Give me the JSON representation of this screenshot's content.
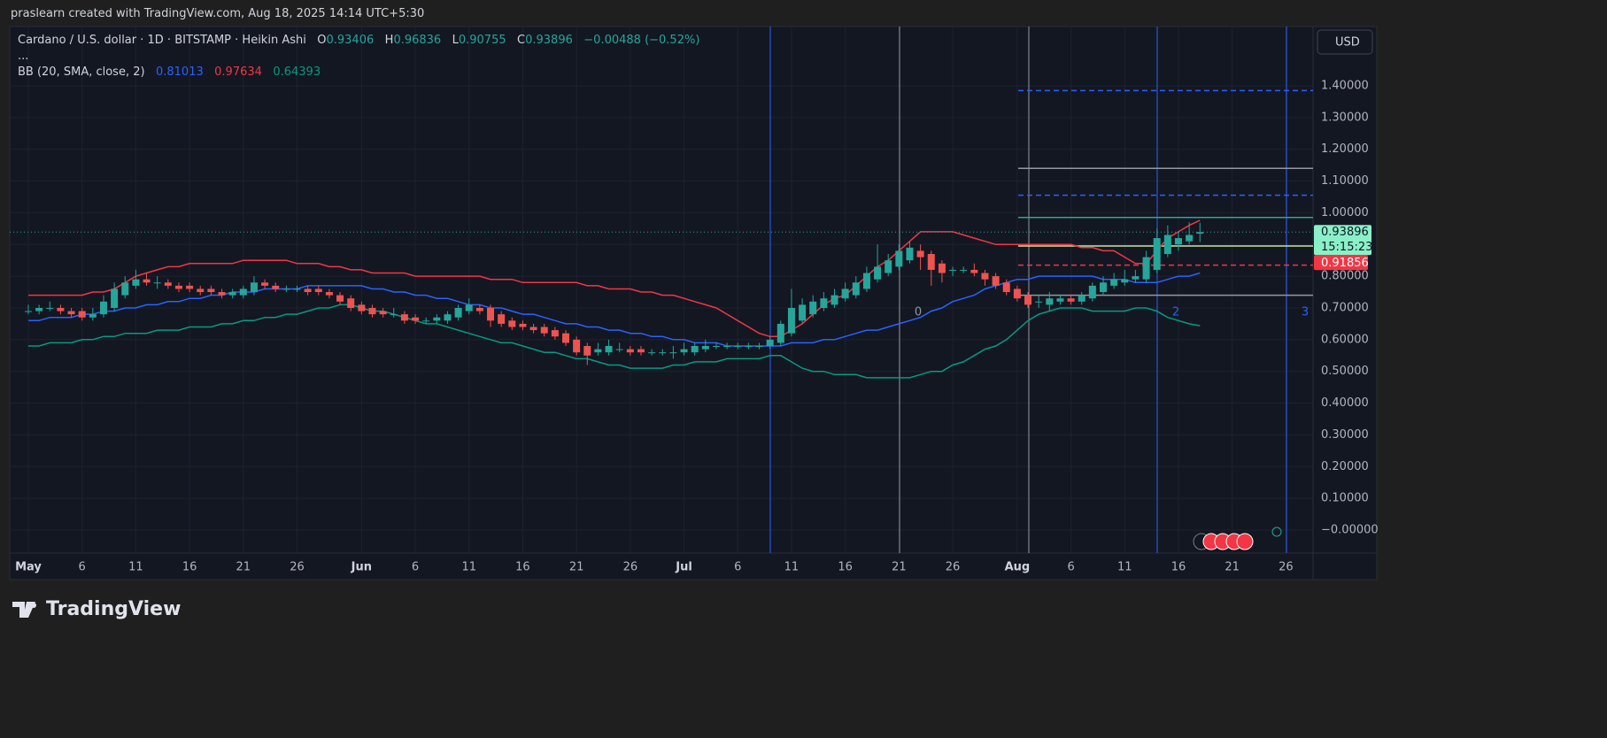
{
  "header": {
    "attribution": "praslearn created with TradingView.com, Aug 18, 2025 14:14 UTC+5:30"
  },
  "chart_data": {
    "type": "candlestick",
    "symbol": "Cardano / U.S. dollar · 1D · BITSTAMP · Heikin Ashi",
    "ohlc_letters": [
      "O",
      "H",
      "L",
      "C"
    ],
    "change_label": "−0.00488 (−0.52%)",
    "more": "...",
    "indicator": "BB (20, SMA, close, 2)",
    "currency": "USD",
    "countdown": "15:15:23",
    "alert_price": 0.91856,
    "drawing_labels": [
      "0",
      "2",
      "3"
    ],
    "up_color": "#26a69a",
    "down_color": "#ef5350",
    "grid": true,
    "categories": [
      "May",
      null,
      null,
      null,
      null,
      "6",
      null,
      null,
      null,
      null,
      "11",
      null,
      null,
      null,
      null,
      "16",
      null,
      null,
      null,
      null,
      "21",
      null,
      null,
      null,
      null,
      "26",
      null,
      null,
      null,
      null,
      null,
      "Jun",
      null,
      null,
      null,
      null,
      "6",
      null,
      null,
      null,
      null,
      "11",
      null,
      null,
      null,
      null,
      "16",
      null,
      null,
      null,
      null,
      "21",
      null,
      null,
      null,
      null,
      "26",
      null,
      null,
      null,
      null,
      "Jul",
      null,
      null,
      null,
      null,
      "6",
      null,
      null,
      null,
      null,
      "11",
      null,
      null,
      null,
      null,
      "16",
      null,
      null,
      null,
      null,
      "21",
      null,
      null,
      null,
      null,
      "26",
      null,
      null,
      null,
      null,
      null,
      "Aug",
      null,
      null,
      null,
      null,
      "6",
      null,
      null,
      null,
      null,
      "11",
      null,
      null,
      null,
      null,
      "16",
      null,
      null,
      null,
      null,
      "21",
      null,
      null,
      null,
      null,
      "26",
      null,
      null
    ],
    "candles": [
      [
        0.69,
        0.71,
        0.68,
        0.69
      ],
      [
        0.69,
        0.71,
        0.68,
        0.7
      ],
      [
        0.7,
        0.72,
        0.69,
        0.7
      ],
      [
        0.7,
        0.71,
        0.68,
        0.69
      ],
      [
        0.69,
        0.7,
        0.67,
        0.68
      ],
      [
        0.69,
        0.7,
        0.66,
        0.67
      ],
      [
        0.67,
        0.7,
        0.66,
        0.68
      ],
      [
        0.68,
        0.74,
        0.67,
        0.72
      ],
      [
        0.7,
        0.78,
        0.69,
        0.76
      ],
      [
        0.74,
        0.8,
        0.73,
        0.78
      ],
      [
        0.77,
        0.82,
        0.76,
        0.79
      ],
      [
        0.79,
        0.81,
        0.77,
        0.78
      ],
      [
        0.78,
        0.8,
        0.76,
        0.78
      ],
      [
        0.78,
        0.79,
        0.76,
        0.77
      ],
      [
        0.77,
        0.78,
        0.75,
        0.76
      ],
      [
        0.77,
        0.78,
        0.75,
        0.76
      ],
      [
        0.76,
        0.77,
        0.74,
        0.75
      ],
      [
        0.76,
        0.77,
        0.74,
        0.75
      ],
      [
        0.75,
        0.76,
        0.73,
        0.74
      ],
      [
        0.74,
        0.76,
        0.73,
        0.75
      ],
      [
        0.74,
        0.77,
        0.73,
        0.76
      ],
      [
        0.75,
        0.8,
        0.74,
        0.78
      ],
      [
        0.78,
        0.79,
        0.76,
        0.77
      ],
      [
        0.77,
        0.78,
        0.75,
        0.76
      ],
      [
        0.76,
        0.77,
        0.75,
        0.76
      ],
      [
        0.76,
        0.77,
        0.75,
        0.76
      ],
      [
        0.76,
        0.77,
        0.74,
        0.75
      ],
      [
        0.76,
        0.77,
        0.74,
        0.75
      ],
      [
        0.75,
        0.76,
        0.73,
        0.74
      ],
      [
        0.74,
        0.75,
        0.71,
        0.72
      ],
      [
        0.73,
        0.74,
        0.69,
        0.7
      ],
      [
        0.71,
        0.72,
        0.68,
        0.69
      ],
      [
        0.7,
        0.71,
        0.67,
        0.68
      ],
      [
        0.69,
        0.7,
        0.67,
        0.68
      ],
      [
        0.68,
        0.7,
        0.67,
        0.68
      ],
      [
        0.68,
        0.69,
        0.65,
        0.66
      ],
      [
        0.67,
        0.68,
        0.65,
        0.66
      ],
      [
        0.66,
        0.67,
        0.65,
        0.66
      ],
      [
        0.66,
        0.68,
        0.65,
        0.67
      ],
      [
        0.66,
        0.69,
        0.65,
        0.68
      ],
      [
        0.67,
        0.71,
        0.66,
        0.7
      ],
      [
        0.69,
        0.73,
        0.68,
        0.71
      ],
      [
        0.7,
        0.71,
        0.68,
        0.69
      ],
      [
        0.7,
        0.71,
        0.64,
        0.66
      ],
      [
        0.68,
        0.69,
        0.64,
        0.65
      ],
      [
        0.66,
        0.67,
        0.63,
        0.64
      ],
      [
        0.65,
        0.66,
        0.63,
        0.64
      ],
      [
        0.64,
        0.65,
        0.62,
        0.63
      ],
      [
        0.64,
        0.65,
        0.61,
        0.62
      ],
      [
        0.63,
        0.64,
        0.6,
        0.61
      ],
      [
        0.62,
        0.63,
        0.58,
        0.59
      ],
      [
        0.6,
        0.61,
        0.55,
        0.56
      ],
      [
        0.58,
        0.59,
        0.52,
        0.55
      ],
      [
        0.56,
        0.59,
        0.55,
        0.57
      ],
      [
        0.56,
        0.6,
        0.55,
        0.58
      ],
      [
        0.57,
        0.59,
        0.56,
        0.57
      ],
      [
        0.57,
        0.58,
        0.55,
        0.56
      ],
      [
        0.57,
        0.58,
        0.55,
        0.56
      ],
      [
        0.56,
        0.57,
        0.55,
        0.56
      ],
      [
        0.56,
        0.57,
        0.55,
        0.56
      ],
      [
        0.56,
        0.58,
        0.54,
        0.56
      ],
      [
        0.56,
        0.59,
        0.55,
        0.57
      ],
      [
        0.56,
        0.59,
        0.55,
        0.58
      ],
      [
        0.57,
        0.6,
        0.56,
        0.58
      ],
      [
        0.58,
        0.59,
        0.57,
        0.58
      ],
      [
        0.58,
        0.59,
        0.57,
        0.58
      ],
      [
        0.58,
        0.59,
        0.57,
        0.58
      ],
      [
        0.58,
        0.59,
        0.57,
        0.58
      ],
      [
        0.58,
        0.59,
        0.57,
        0.58
      ],
      [
        0.58,
        0.61,
        0.57,
        0.6
      ],
      [
        0.59,
        0.66,
        0.58,
        0.65
      ],
      [
        0.62,
        0.76,
        0.61,
        0.7
      ],
      [
        0.66,
        0.73,
        0.65,
        0.71
      ],
      [
        0.68,
        0.74,
        0.67,
        0.72
      ],
      [
        0.7,
        0.75,
        0.69,
        0.73
      ],
      [
        0.71,
        0.76,
        0.7,
        0.74
      ],
      [
        0.73,
        0.78,
        0.72,
        0.76
      ],
      [
        0.74,
        0.8,
        0.73,
        0.78
      ],
      [
        0.76,
        0.83,
        0.75,
        0.81
      ],
      [
        0.79,
        0.9,
        0.78,
        0.83
      ],
      [
        0.81,
        0.87,
        0.8,
        0.85
      ],
      [
        0.83,
        0.9,
        0.82,
        0.88
      ],
      [
        0.85,
        0.91,
        0.84,
        0.89
      ],
      [
        0.88,
        0.9,
        0.82,
        0.86
      ],
      [
        0.87,
        0.88,
        0.77,
        0.82
      ],
      [
        0.84,
        0.85,
        0.78,
        0.81
      ],
      [
        0.82,
        0.83,
        0.8,
        0.82
      ],
      [
        0.82,
        0.83,
        0.81,
        0.82
      ],
      [
        0.82,
        0.84,
        0.8,
        0.81
      ],
      [
        0.81,
        0.82,
        0.77,
        0.79
      ],
      [
        0.8,
        0.81,
        0.76,
        0.77
      ],
      [
        0.78,
        0.79,
        0.74,
        0.75
      ],
      [
        0.76,
        0.77,
        0.72,
        0.73
      ],
      [
        0.74,
        0.75,
        0.7,
        0.71
      ],
      [
        0.72,
        0.74,
        0.7,
        0.72
      ],
      [
        0.71,
        0.75,
        0.69,
        0.73
      ],
      [
        0.72,
        0.74,
        0.71,
        0.73
      ],
      [
        0.73,
        0.74,
        0.71,
        0.72
      ],
      [
        0.72,
        0.75,
        0.71,
        0.74
      ],
      [
        0.73,
        0.78,
        0.72,
        0.77
      ],
      [
        0.75,
        0.8,
        0.74,
        0.78
      ],
      [
        0.77,
        0.81,
        0.76,
        0.79
      ],
      [
        0.78,
        0.82,
        0.77,
        0.79
      ],
      [
        0.79,
        0.82,
        0.78,
        0.8
      ],
      [
        0.79,
        0.88,
        0.78,
        0.86
      ],
      [
        0.82,
        0.95,
        0.81,
        0.92
      ],
      [
        0.87,
        0.96,
        0.86,
        0.93
      ],
      [
        0.9,
        0.94,
        0.88,
        0.92
      ],
      [
        0.91,
        0.97,
        0.9,
        0.93
      ],
      [
        0.93406,
        0.96836,
        0.90755,
        0.93896
      ],
      null,
      null,
      null,
      null,
      null,
      null,
      null,
      null,
      null,
      null
    ],
    "series": [
      {
        "name": "Basis",
        "color": "#2962ff",
        "values": [
          0.66,
          0.66,
          0.67,
          0.67,
          0.67,
          0.68,
          0.68,
          0.69,
          0.69,
          0.7,
          0.7,
          0.71,
          0.71,
          0.72,
          0.72,
          0.73,
          0.73,
          0.74,
          0.74,
          0.75,
          0.75,
          0.75,
          0.76,
          0.76,
          0.76,
          0.76,
          0.77,
          0.77,
          0.77,
          0.77,
          0.77,
          0.77,
          0.76,
          0.76,
          0.75,
          0.75,
          0.74,
          0.74,
          0.73,
          0.73,
          0.72,
          0.71,
          0.71,
          0.7,
          0.7,
          0.69,
          0.68,
          0.68,
          0.67,
          0.66,
          0.65,
          0.65,
          0.64,
          0.64,
          0.63,
          0.63,
          0.62,
          0.62,
          0.61,
          0.61,
          0.6,
          0.6,
          0.59,
          0.59,
          0.59,
          0.58,
          0.58,
          0.58,
          0.58,
          0.58,
          0.58,
          0.59,
          0.59,
          0.59,
          0.6,
          0.6,
          0.61,
          0.62,
          0.63,
          0.63,
          0.64,
          0.65,
          0.66,
          0.67,
          0.69,
          0.7,
          0.72,
          0.73,
          0.74,
          0.76,
          0.77,
          0.78,
          0.79,
          0.79,
          0.8,
          0.8,
          0.8,
          0.8,
          0.8,
          0.8,
          0.79,
          0.79,
          0.79,
          0.78,
          0.78,
          0.78,
          0.79,
          0.8,
          0.8,
          0.81013,
          null,
          null,
          null,
          null,
          null,
          null,
          null,
          null,
          null,
          null
        ]
      },
      {
        "name": "Upper",
        "color": "#f23645",
        "values": [
          0.74,
          0.74,
          0.74,
          0.74,
          0.74,
          0.74,
          0.75,
          0.75,
          0.76,
          0.78,
          0.8,
          0.81,
          0.82,
          0.83,
          0.83,
          0.84,
          0.84,
          0.84,
          0.84,
          0.84,
          0.85,
          0.85,
          0.85,
          0.85,
          0.85,
          0.84,
          0.84,
          0.84,
          0.83,
          0.83,
          0.82,
          0.82,
          0.81,
          0.81,
          0.81,
          0.81,
          0.8,
          0.8,
          0.8,
          0.8,
          0.8,
          0.8,
          0.8,
          0.79,
          0.79,
          0.79,
          0.78,
          0.78,
          0.78,
          0.78,
          0.78,
          0.78,
          0.77,
          0.77,
          0.76,
          0.76,
          0.76,
          0.75,
          0.75,
          0.74,
          0.74,
          0.73,
          0.72,
          0.71,
          0.7,
          0.68,
          0.66,
          0.64,
          0.62,
          0.61,
          0.61,
          0.63,
          0.65,
          0.68,
          0.71,
          0.73,
          0.74,
          0.77,
          0.8,
          0.83,
          0.85,
          0.88,
          0.91,
          0.94,
          0.94,
          0.94,
          0.94,
          0.93,
          0.92,
          0.91,
          0.9,
          0.9,
          0.9,
          0.9,
          0.9,
          0.9,
          0.9,
          0.9,
          0.89,
          0.89,
          0.88,
          0.88,
          0.86,
          0.84,
          0.84,
          0.88,
          0.92,
          0.94,
          0.96,
          0.97634,
          null,
          null,
          null,
          null,
          null,
          null,
          null,
          null,
          null,
          null
        ]
      },
      {
        "name": "Lower",
        "color": "#089981",
        "values": [
          0.58,
          0.58,
          0.59,
          0.59,
          0.59,
          0.6,
          0.6,
          0.61,
          0.61,
          0.62,
          0.62,
          0.62,
          0.63,
          0.63,
          0.63,
          0.64,
          0.64,
          0.64,
          0.65,
          0.65,
          0.66,
          0.66,
          0.67,
          0.67,
          0.68,
          0.68,
          0.69,
          0.7,
          0.7,
          0.71,
          0.71,
          0.7,
          0.69,
          0.69,
          0.68,
          0.67,
          0.66,
          0.65,
          0.65,
          0.64,
          0.63,
          0.62,
          0.61,
          0.6,
          0.59,
          0.59,
          0.58,
          0.57,
          0.56,
          0.56,
          0.55,
          0.54,
          0.54,
          0.53,
          0.52,
          0.52,
          0.51,
          0.51,
          0.51,
          0.51,
          0.52,
          0.52,
          0.53,
          0.53,
          0.53,
          0.54,
          0.54,
          0.54,
          0.54,
          0.55,
          0.55,
          0.53,
          0.51,
          0.5,
          0.5,
          0.49,
          0.49,
          0.49,
          0.48,
          0.48,
          0.48,
          0.48,
          0.48,
          0.49,
          0.5,
          0.5,
          0.52,
          0.53,
          0.55,
          0.57,
          0.58,
          0.6,
          0.63,
          0.66,
          0.68,
          0.69,
          0.7,
          0.7,
          0.7,
          0.69,
          0.69,
          0.69,
          0.69,
          0.7,
          0.7,
          0.69,
          0.67,
          0.66,
          0.65,
          0.64393,
          null,
          null,
          null,
          null,
          null,
          null,
          null,
          null,
          null,
          null
        ]
      }
    ],
    "levels": [
      {
        "value": 1.385,
        "color": "#2962ff",
        "dashed": true
      },
      {
        "value": 1.14,
        "color": "#9598a1",
        "dashed": false
      },
      {
        "value": 1.055,
        "color": "#2962ff",
        "dashed": true
      },
      {
        "value": 0.985,
        "color": "#22ab94",
        "dashed": false
      },
      {
        "value": 0.895,
        "color": "#c8e6a0",
        "dashed": false
      },
      {
        "value": 0.835,
        "color": "#f23645",
        "dashed": true
      },
      {
        "value": 0.74,
        "color": "#9598a1",
        "dashed": false
      }
    ],
    "ylim": [
      -0.0725,
      1.5867
    ],
    "yticks": [
      {
        "value": 0,
        "label": "−0.00000"
      },
      {
        "value": 0.1,
        "label": "0.10000"
      },
      {
        "value": 0.2,
        "label": "0.20000"
      },
      {
        "value": 0.3,
        "label": "0.30000"
      },
      {
        "value": 0.4,
        "label": "0.40000"
      },
      {
        "value": 0.5,
        "label": "0.50000"
      },
      {
        "value": 0.6,
        "label": "0.60000"
      },
      {
        "value": 0.7,
        "label": "0.70000"
      },
      {
        "value": 0.8,
        "label": "0.80000"
      },
      {
        "value": 0.9,
        "label": "0.90000"
      },
      {
        "value": 1.0,
        "label": "1.00000"
      },
      {
        "value": 1.1,
        "label": "1.10000"
      },
      {
        "value": 1.2,
        "label": "1.20000"
      },
      {
        "value": 1.3,
        "label": "1.30000"
      },
      {
        "value": 1.4,
        "label": "1.40000"
      }
    ]
  },
  "footer": {
    "brand": "TradingView"
  }
}
